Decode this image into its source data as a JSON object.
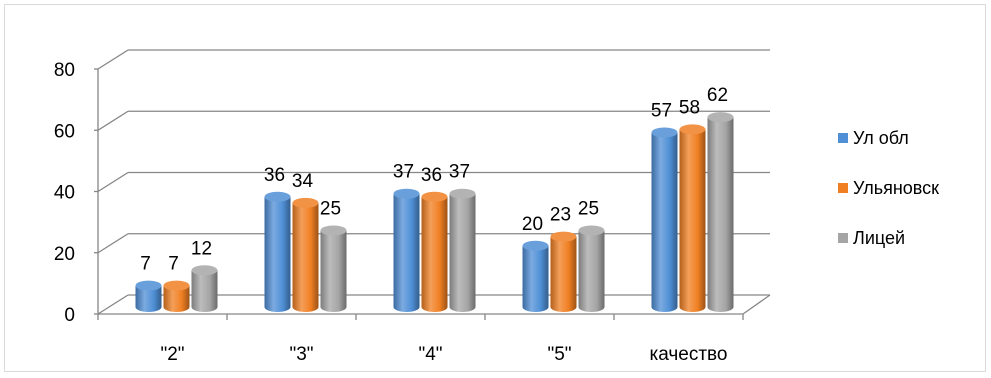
{
  "chart_data": {
    "type": "bar",
    "categories": [
      "\"2\"",
      "\"3\"",
      "\"4\"",
      "\"5\"",
      "качество"
    ],
    "series": [
      {
        "name": "Ул обл",
        "values": [
          7,
          36,
          37,
          20,
          57
        ],
        "color": "#4f8fd6"
      },
      {
        "name": "Ульяновск",
        "values": [
          7,
          34,
          36,
          23,
          58
        ],
        "color": "#f07f23"
      },
      {
        "name": "Лицей",
        "values": [
          12,
          25,
          37,
          25,
          62
        ],
        "color": "#a5a5a5"
      }
    ],
    "ylim": [
      0,
      80
    ],
    "yticks": [
      0,
      20,
      40,
      60,
      80
    ],
    "grid": true,
    "legend_position": "right",
    "data_labels": true,
    "style": "3d-cylinder"
  }
}
